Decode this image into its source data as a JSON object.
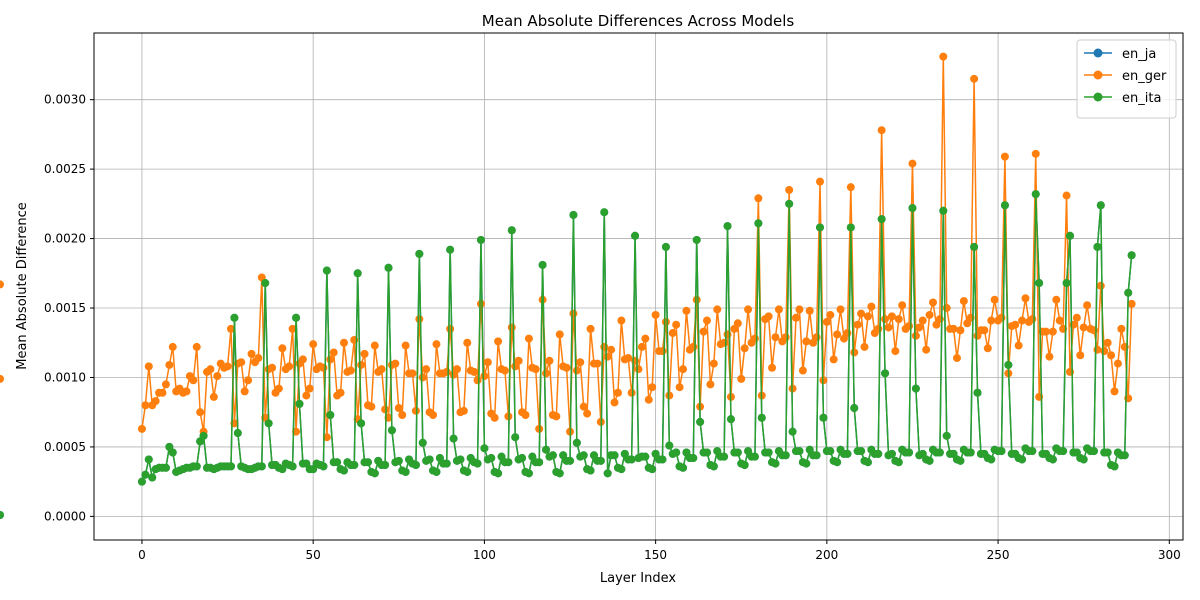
{
  "chart_data": {
    "type": "line",
    "title": "Mean Absolute Differences Across Models",
    "xlabel": "Layer Index",
    "ylabel": "Mean Absolute Difference",
    "xlim": [
      -14,
      304
    ],
    "ylim": [
      -0.00017,
      0.00348
    ],
    "xticks": [
      0,
      50,
      100,
      150,
      200,
      250,
      300
    ],
    "yticks": [
      0.0,
      0.0005,
      0.001,
      0.0015,
      0.002,
      0.0025,
      0.003
    ],
    "ytick_labels": [
      "0.0000",
      "0.0005",
      "0.0010",
      "0.0015",
      "0.0020",
      "0.0025",
      "0.0030"
    ],
    "grid": true,
    "legend_position": "top-right",
    "x": {
      "start": 0,
      "end": 289,
      "step": 1
    },
    "series": [
      {
        "name": "en_ja",
        "color": "#1f77b4",
        "values": [
          0.00025,
          0.0003,
          0.00041,
          0.00028,
          0.00034,
          0.00035,
          0.00035,
          0.00035,
          0.0005,
          0.00046,
          0.00032,
          0.00033,
          0.00034,
          0.00035,
          0.00035,
          0.00036,
          0.00036,
          0.00054,
          0.00058,
          0.00035,
          0.00035,
          0.00034,
          0.00035,
          0.00036,
          0.00036,
          0.00036,
          0.00036,
          0.00143,
          0.0006,
          0.00036,
          0.00035,
          0.00034,
          0.00034,
          0.00035,
          0.00036,
          0.00036,
          0.00168,
          0.00067,
          0.00037,
          0.00037,
          0.00035,
          0.00034,
          0.00038,
          0.00037,
          0.00036,
          0.00143,
          0.00081,
          0.00038,
          0.00038,
          0.00034,
          0.00034,
          0.00038,
          0.00037,
          0.00036,
          0.00177,
          0.00073,
          0.00039,
          0.00039,
          0.00034,
          0.00033,
          0.00039,
          0.00037,
          0.00037,
          0.00175,
          0.00067,
          0.00039,
          0.00039,
          0.00032,
          0.00031,
          0.0004,
          0.00037,
          0.00037,
          0.00179,
          0.00062,
          0.00039,
          0.0004,
          0.00033,
          0.00032,
          0.00041,
          0.00038,
          0.00037,
          0.00189,
          0.00053,
          0.0004,
          0.00041,
          0.00033,
          0.00032,
          0.00042,
          0.00038,
          0.00038,
          0.00192,
          0.00056,
          0.0004,
          0.00041,
          0.00033,
          0.00032,
          0.00042,
          0.00039,
          0.00038,
          0.00199,
          0.00049,
          0.00041,
          0.00042,
          0.00032,
          0.00031,
          0.00043,
          0.00039,
          0.00039,
          0.00206,
          0.00057,
          0.00041,
          0.00042,
          0.00032,
          0.00031,
          0.00043,
          0.00039,
          0.00039,
          0.00181,
          0.00048,
          0.00043,
          0.00044,
          0.00032,
          0.00031,
          0.00044,
          0.0004,
          0.0004,
          0.00217,
          0.00053,
          0.00043,
          0.00044,
          0.00034,
          0.00033,
          0.00044,
          0.0004,
          0.0004,
          0.00219,
          0.00031,
          0.00044,
          0.00044,
          0.00035,
          0.00034,
          0.00045,
          0.00041,
          0.00041,
          0.00202,
          0.00042,
          0.00043,
          0.00043,
          0.00035,
          0.00034,
          0.00045,
          0.00041,
          0.00041,
          0.00194,
          0.00051,
          0.00045,
          0.00046,
          0.00036,
          0.00035,
          0.00046,
          0.00042,
          0.00042,
          0.00199,
          0.00068,
          0.00046,
          0.00046,
          0.00037,
          0.00036,
          0.00047,
          0.00043,
          0.00043,
          0.00209,
          0.0007,
          0.00046,
          0.00046,
          0.00038,
          0.00037,
          0.00047,
          0.00043,
          0.00043,
          0.00211,
          0.00071,
          0.00046,
          0.00046,
          0.00039,
          0.00038,
          0.00047,
          0.00044,
          0.00044,
          0.00225,
          0.00061,
          0.00047,
          0.00047,
          0.00039,
          0.00038,
          0.00048,
          0.00044,
          0.00044,
          0.00208,
          0.00071,
          0.00047,
          0.00047,
          0.0004,
          0.00039,
          0.00048,
          0.00045,
          0.00045,
          0.00208,
          0.00078,
          0.00047,
          0.00047,
          0.0004,
          0.00039,
          0.00048,
          0.00045,
          0.00045,
          0.00214,
          0.00103,
          0.00044,
          0.00045,
          0.0004,
          0.00039,
          0.00048,
          0.00046,
          0.00046,
          0.00222,
          0.00092,
          0.00044,
          0.00045,
          0.00041,
          0.0004,
          0.00048,
          0.00046,
          0.00046,
          0.0022,
          0.00058,
          0.00045,
          0.00045,
          0.00041,
          0.0004,
          0.00048,
          0.00046,
          0.00046,
          0.00194,
          0.00089,
          0.00045,
          0.00045,
          0.00042,
          0.00041,
          0.00048,
          0.00047,
          0.00047,
          0.00224,
          0.00109,
          0.00045,
          0.00045,
          0.00042,
          0.00041,
          0.00049,
          0.00047,
          0.00047,
          0.00232,
          0.00168,
          0.00045,
          0.00045,
          0.00042,
          0.00041,
          0.00049,
          0.00047,
          0.00047,
          0.00168,
          0.00202,
          0.00046,
          0.00046,
          0.00042,
          0.00041,
          0.00049,
          0.00047,
          0.00047,
          0.00194,
          0.00224,
          0.00046,
          0.00046,
          0.00037,
          0.00036,
          0.00046,
          0.00044,
          0.00044,
          0.00161,
          0.00188,
          1e-05
        ]
      },
      {
        "name": "en_ger",
        "color": "#ff7f0e",
        "values": [
          0.00063,
          0.0008,
          0.00108,
          0.0008,
          0.00083,
          0.00089,
          0.00089,
          0.00095,
          0.00109,
          0.00122,
          0.0009,
          0.00092,
          0.00089,
          0.0009,
          0.00101,
          0.00098,
          0.00122,
          0.00075,
          0.00061,
          0.00104,
          0.00106,
          0.00086,
          0.00101,
          0.0011,
          0.00107,
          0.00108,
          0.00135,
          0.00067,
          0.0011,
          0.00111,
          0.0009,
          0.00098,
          0.00117,
          0.00111,
          0.00114,
          0.00172,
          0.00071,
          0.00106,
          0.00107,
          0.00089,
          0.00092,
          0.00121,
          0.00106,
          0.00108,
          0.00135,
          0.00061,
          0.0011,
          0.00113,
          0.00087,
          0.00092,
          0.00124,
          0.00106,
          0.00108,
          0.00107,
          0.00057,
          0.00113,
          0.00118,
          0.00087,
          0.00089,
          0.00125,
          0.00104,
          0.00105,
          0.00127,
          0.0007,
          0.00109,
          0.00117,
          0.0008,
          0.00079,
          0.00123,
          0.00104,
          0.00106,
          0.00077,
          0.00071,
          0.00109,
          0.0011,
          0.00078,
          0.00073,
          0.00123,
          0.00103,
          0.00103,
          0.00076,
          0.00142,
          0.001,
          0.00106,
          0.00075,
          0.00073,
          0.00124,
          0.00103,
          0.00103,
          0.00104,
          0.00135,
          0.00102,
          0.00106,
          0.00075,
          0.00076,
          0.00125,
          0.00105,
          0.00104,
          0.00098,
          0.00153,
          0.00101,
          0.00111,
          0.00074,
          0.00071,
          0.00126,
          0.00106,
          0.00105,
          0.00072,
          0.00136,
          0.00108,
          0.00112,
          0.00075,
          0.00073,
          0.00128,
          0.00107,
          0.00106,
          0.00063,
          0.00156,
          0.00103,
          0.00112,
          0.00073,
          0.00072,
          0.00131,
          0.00108,
          0.00107,
          0.00061,
          0.00146,
          0.00105,
          0.00111,
          0.00079,
          0.00074,
          0.00135,
          0.0011,
          0.0011,
          0.00068,
          0.00122,
          0.00115,
          0.0012,
          0.00082,
          0.00089,
          0.00141,
          0.00113,
          0.00114,
          0.00089,
          0.00112,
          0.00106,
          0.00122,
          0.00128,
          0.00084,
          0.00093,
          0.00145,
          0.00119,
          0.00119,
          0.0014,
          0.00087,
          0.00132,
          0.00138,
          0.00093,
          0.00106,
          0.00148,
          0.0012,
          0.00122,
          0.00156,
          0.00079,
          0.00133,
          0.00141,
          0.00095,
          0.0011,
          0.00149,
          0.00124,
          0.00125,
          0.00131,
          0.00086,
          0.00135,
          0.00139,
          0.00099,
          0.00121,
          0.00149,
          0.00125,
          0.00128,
          0.00229,
          0.00087,
          0.00142,
          0.00144,
          0.00107,
          0.00129,
          0.00149,
          0.00126,
          0.00129,
          0.00235,
          0.00092,
          0.00143,
          0.00149,
          0.00105,
          0.00126,
          0.00148,
          0.00125,
          0.00129,
          0.00241,
          0.00098,
          0.0014,
          0.00145,
          0.00113,
          0.00131,
          0.00149,
          0.00128,
          0.00132,
          0.00237,
          0.00118,
          0.00138,
          0.00146,
          0.00122,
          0.00144,
          0.00151,
          0.00132,
          0.00135,
          0.00278,
          0.00142,
          0.00136,
          0.00144,
          0.00119,
          0.00142,
          0.00152,
          0.00135,
          0.00137,
          0.00254,
          0.0013,
          0.00136,
          0.00141,
          0.0012,
          0.00145,
          0.00154,
          0.00138,
          0.00142,
          0.00331,
          0.0015,
          0.00135,
          0.00135,
          0.00114,
          0.00134,
          0.00155,
          0.00139,
          0.00143,
          0.00315,
          0.0013,
          0.00134,
          0.00134,
          0.00121,
          0.00141,
          0.00156,
          0.00141,
          0.00143,
          0.00259,
          0.00103,
          0.00137,
          0.00138,
          0.00123,
          0.00141,
          0.00157,
          0.0014,
          0.00142,
          0.00261,
          0.00086,
          0.00133,
          0.00133,
          0.00115,
          0.00133,
          0.00156,
          0.00141,
          0.00135,
          0.00231,
          0.00104,
          0.00138,
          0.00143,
          0.00116,
          0.00136,
          0.00152,
          0.00135,
          0.00134,
          0.0012,
          0.00166,
          0.00119,
          0.00125,
          0.00116,
          0.0009,
          0.0011,
          0.00135,
          0.00122,
          0.00085,
          0.00153,
          0.00099,
          0.00167
        ]
      },
      {
        "name": "en_ita",
        "color": "#2ca02c",
        "values": [
          0.00025,
          0.0003,
          0.00041,
          0.00028,
          0.00034,
          0.00035,
          0.00035,
          0.00035,
          0.0005,
          0.00046,
          0.00032,
          0.00033,
          0.00034,
          0.00035,
          0.00035,
          0.00036,
          0.00036,
          0.00054,
          0.00058,
          0.00035,
          0.00035,
          0.00034,
          0.00035,
          0.00036,
          0.00036,
          0.00036,
          0.00036,
          0.00143,
          0.0006,
          0.00036,
          0.00035,
          0.00034,
          0.00034,
          0.00035,
          0.00036,
          0.00036,
          0.00168,
          0.00067,
          0.00037,
          0.00037,
          0.00035,
          0.00034,
          0.00038,
          0.00037,
          0.00036,
          0.00143,
          0.00081,
          0.00038,
          0.00038,
          0.00034,
          0.00034,
          0.00038,
          0.00037,
          0.00036,
          0.00177,
          0.00073,
          0.00039,
          0.00039,
          0.00034,
          0.00033,
          0.00039,
          0.00037,
          0.00037,
          0.00175,
          0.00067,
          0.00039,
          0.00039,
          0.00032,
          0.00031,
          0.0004,
          0.00037,
          0.00037,
          0.00179,
          0.00062,
          0.00039,
          0.0004,
          0.00033,
          0.00032,
          0.00041,
          0.00038,
          0.00037,
          0.00189,
          0.00053,
          0.0004,
          0.00041,
          0.00033,
          0.00032,
          0.00042,
          0.00038,
          0.00038,
          0.00192,
          0.00056,
          0.0004,
          0.00041,
          0.00033,
          0.00032,
          0.00042,
          0.00039,
          0.00038,
          0.00199,
          0.00049,
          0.00041,
          0.00042,
          0.00032,
          0.00031,
          0.00043,
          0.00039,
          0.00039,
          0.00206,
          0.00057,
          0.00041,
          0.00042,
          0.00032,
          0.00031,
          0.00043,
          0.00039,
          0.00039,
          0.00181,
          0.00048,
          0.00043,
          0.00044,
          0.00032,
          0.00031,
          0.00044,
          0.0004,
          0.0004,
          0.00217,
          0.00053,
          0.00043,
          0.00044,
          0.00034,
          0.00033,
          0.00044,
          0.0004,
          0.0004,
          0.00219,
          0.00031,
          0.00044,
          0.00044,
          0.00035,
          0.00034,
          0.00045,
          0.00041,
          0.00041,
          0.00202,
          0.00042,
          0.00043,
          0.00043,
          0.00035,
          0.00034,
          0.00045,
          0.00041,
          0.00041,
          0.00194,
          0.00051,
          0.00045,
          0.00046,
          0.00036,
          0.00035,
          0.00046,
          0.00042,
          0.00042,
          0.00199,
          0.00068,
          0.00046,
          0.00046,
          0.00037,
          0.00036,
          0.00047,
          0.00043,
          0.00043,
          0.00209,
          0.0007,
          0.00046,
          0.00046,
          0.00038,
          0.00037,
          0.00047,
          0.00043,
          0.00043,
          0.00211,
          0.00071,
          0.00046,
          0.00046,
          0.00039,
          0.00038,
          0.00047,
          0.00044,
          0.00044,
          0.00225,
          0.00061,
          0.00047,
          0.00047,
          0.00039,
          0.00038,
          0.00048,
          0.00044,
          0.00044,
          0.00208,
          0.00071,
          0.00047,
          0.00047,
          0.0004,
          0.00039,
          0.00048,
          0.00045,
          0.00045,
          0.00208,
          0.00078,
          0.00047,
          0.00047,
          0.0004,
          0.00039,
          0.00048,
          0.00045,
          0.00045,
          0.00214,
          0.00103,
          0.00044,
          0.00045,
          0.0004,
          0.00039,
          0.00048,
          0.00046,
          0.00046,
          0.00222,
          0.00092,
          0.00044,
          0.00045,
          0.00041,
          0.0004,
          0.00048,
          0.00046,
          0.00046,
          0.0022,
          0.00058,
          0.00045,
          0.00045,
          0.00041,
          0.0004,
          0.00048,
          0.00046,
          0.00046,
          0.00194,
          0.00089,
          0.00045,
          0.00045,
          0.00042,
          0.00041,
          0.00048,
          0.00047,
          0.00047,
          0.00224,
          0.00109,
          0.00045,
          0.00045,
          0.00042,
          0.00041,
          0.00049,
          0.00047,
          0.00047,
          0.00232,
          0.00168,
          0.00045,
          0.00045,
          0.00042,
          0.00041,
          0.00049,
          0.00047,
          0.00047,
          0.00168,
          0.00202,
          0.00046,
          0.00046,
          0.00042,
          0.00041,
          0.00049,
          0.00047,
          0.00047,
          0.00194,
          0.00224,
          0.00046,
          0.00046,
          0.00037,
          0.00036,
          0.00046,
          0.00044,
          0.00044,
          0.00161,
          0.00188,
          1e-05
        ]
      }
    ]
  }
}
